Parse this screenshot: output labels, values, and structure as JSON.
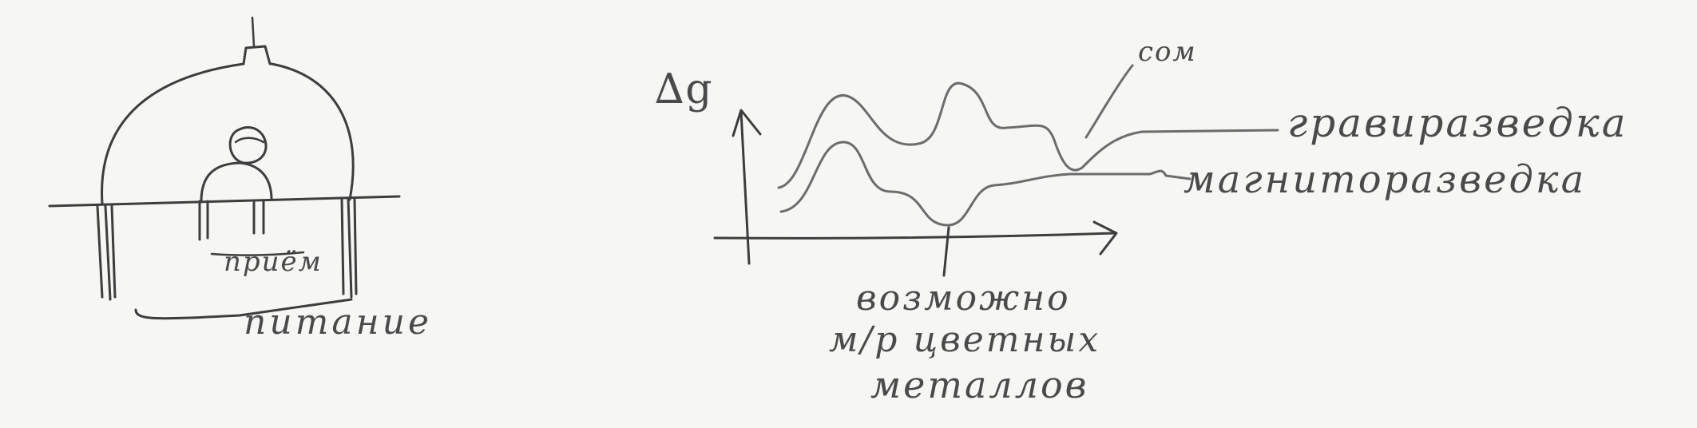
{
  "sketch": {
    "left_diagram": {
      "label_reception": "приём",
      "label_power": "питание"
    },
    "right_diagram": {
      "axis_label_y": "∆g",
      "label_som": "сом",
      "label_gravity": "гравиразведка",
      "label_magnetic": "магниторазведка",
      "note_line1": "возможно",
      "note_line2": "м/р цветных",
      "note_line3": "металлов"
    }
  }
}
